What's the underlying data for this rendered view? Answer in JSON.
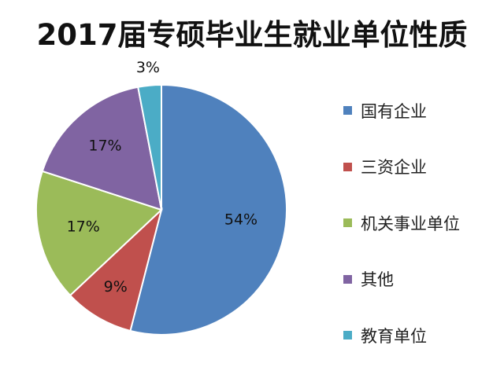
{
  "chart_data": {
    "type": "pie",
    "title": "2017届专硕毕业生就业单位性质",
    "slices": [
      {
        "name": "国有企业",
        "value": 54,
        "label": "54%",
        "color": "#4f81bd"
      },
      {
        "name": "三资企业",
        "value": 9,
        "label": "9%",
        "color": "#c0504d"
      },
      {
        "name": "机关事业单位",
        "value": 17,
        "label": "17%",
        "color": "#9bbb59"
      },
      {
        "name": "其他",
        "value": 17,
        "label": "17%",
        "color": "#8064a2"
      },
      {
        "name": "教育单位",
        "value": 3,
        "label": "3%",
        "color": "#4bacc6"
      }
    ],
    "legend_position": "right"
  }
}
